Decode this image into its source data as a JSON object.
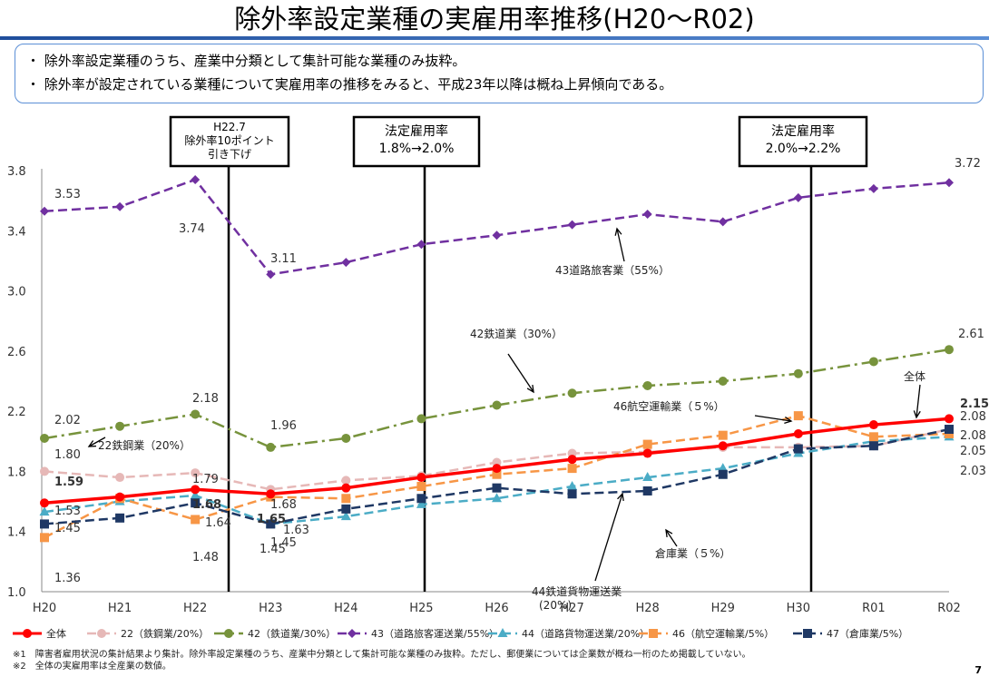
{
  "header": {
    "title": "除外率設定業種の実雇用率推移(H20〜R02)",
    "bullet1": "・ 除外率設定業種のうち、産業中分類として集計可能な業種のみ抜粋。",
    "bullet2": "・ 除外率が設定されている業種について実雇用率の推移をみると、平成23年以降は概ね上昇傾向である。"
  },
  "footnotes": {
    "note1": "※1　障害者雇用状況の集計結果より集計。除外率設定業種のうち、産業中分類として集計可能な業種のみ抜粋。ただし、郵便業については企業数が概ね一桁のため掲載していない。",
    "note2": "※2　全体の実雇用率は全産業の数値。"
  },
  "page_number": "7",
  "chart_data": {
    "type": "line",
    "categories": [
      "H20",
      "H21",
      "H22",
      "H23",
      "H24",
      "H25",
      "H26",
      "H27",
      "H28",
      "H29",
      "H30",
      "R01",
      "R02"
    ],
    "ylim": [
      1.0,
      3.8
    ],
    "yticks": [
      "1.0",
      "1.4",
      "1.8",
      "2.2",
      "2.6",
      "3.0",
      "3.4",
      "3.8"
    ],
    "grid": false,
    "legend_position": "bottom",
    "series": [
      {
        "name": "全体",
        "color": "#ff0000",
        "style": "solid",
        "marker": "circle",
        "values": [
          1.59,
          1.63,
          1.68,
          1.65,
          1.69,
          1.76,
          1.82,
          1.88,
          1.92,
          1.97,
          2.05,
          2.11,
          2.15
        ]
      },
      {
        "name": "22（鉄鋼業/20%）",
        "color": "#e6b8b7",
        "style": "dash",
        "marker": "circle",
        "values": [
          1.8,
          1.76,
          1.79,
          1.68,
          1.74,
          1.77,
          1.86,
          1.92,
          1.93,
          1.96,
          1.96,
          1.97,
          2.08
        ]
      },
      {
        "name": "42（鉄道業/30%）",
        "color": "#77933c",
        "style": "dashdot",
        "marker": "circle",
        "values": [
          2.02,
          2.1,
          2.18,
          1.96,
          2.02,
          2.15,
          2.24,
          2.32,
          2.37,
          2.4,
          2.45,
          2.53,
          2.61
        ]
      },
      {
        "name": "43（道路旅客運送業/55%）",
        "color": "#7030a0",
        "style": "dash",
        "marker": "diamond",
        "values": [
          3.53,
          3.56,
          3.74,
          3.11,
          3.19,
          3.31,
          3.37,
          3.44,
          3.51,
          3.46,
          3.62,
          3.68,
          3.72
        ]
      },
      {
        "name": "44（道路貨物運送業/20%）",
        "color": "#4bacc6",
        "style": "dash",
        "marker": "triangle",
        "values": [
          1.53,
          1.6,
          1.64,
          1.45,
          1.5,
          1.58,
          1.62,
          1.7,
          1.76,
          1.82,
          1.92,
          2.0,
          2.03
        ]
      },
      {
        "name": "46（航空運輸業/5%）",
        "color": "#f79646",
        "style": "dash",
        "marker": "square",
        "values": [
          1.36,
          1.62,
          1.48,
          1.63,
          1.62,
          1.7,
          1.78,
          1.82,
          1.98,
          2.04,
          2.17,
          2.03,
          2.05
        ]
      },
      {
        "name": "47（倉庫業/5%）",
        "color": "#1f3864",
        "style": "dash",
        "marker": "square",
        "values": [
          1.45,
          1.49,
          1.59,
          1.45,
          1.55,
          1.62,
          1.69,
          1.65,
          1.67,
          1.78,
          1.95,
          1.97,
          2.08
        ]
      }
    ],
    "data_labels": [
      {
        "text": "3.53"
      },
      {
        "text": "3.74"
      },
      {
        "text": "3.11"
      },
      {
        "text": "3.72"
      },
      {
        "text": "2.02"
      },
      {
        "text": "2.18"
      },
      {
        "text": "1.96"
      },
      {
        "text": "2.61"
      },
      {
        "text": "1.80"
      },
      {
        "text": "1.79"
      },
      {
        "text": "1.68"
      },
      {
        "text": "1.59"
      },
      {
        "text": "1.68"
      },
      {
        "text": "1.65"
      },
      {
        "text": "1.53"
      },
      {
        "text": "1.64"
      },
      {
        "text": "1.45"
      },
      {
        "text": "1.45"
      },
      {
        "text": "1.45"
      },
      {
        "text": "1.36"
      },
      {
        "text": "1.48"
      },
      {
        "text": "1.63"
      },
      {
        "text": "2.15"
      },
      {
        "text": "2.08"
      },
      {
        "text": "2.08"
      },
      {
        "text": "2.05"
      },
      {
        "text": "2.03"
      }
    ],
    "annotations": [
      {
        "text": "43道路旅客業（55%）"
      },
      {
        "text": "42鉄道業（30%）"
      },
      {
        "text": "22鉄鋼業（20%）"
      },
      {
        "text": "46航空運輸業（５%）"
      },
      {
        "text": "全体"
      },
      {
        "text": "倉庫業（５%）"
      },
      {
        "text": "44鉄道貨物運送業"
      },
      {
        "text": "(20%)"
      }
    ],
    "event_boxes": [
      {
        "lines": [
          "H22.7",
          "除外率10ポイント",
          "引き下げ"
        ]
      },
      {
        "lines": [
          "法定雇用率",
          "1.8%→2.0%"
        ]
      },
      {
        "lines": [
          "法定雇用率",
          "2.0%→2.2%"
        ]
      }
    ]
  }
}
